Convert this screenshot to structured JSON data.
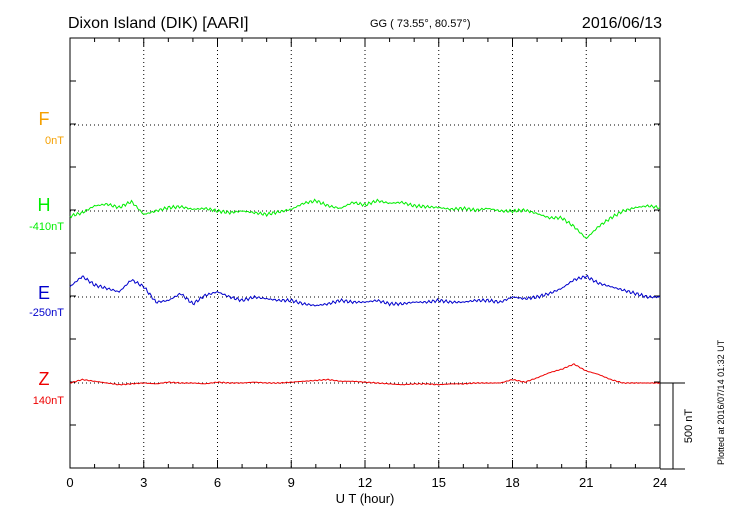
{
  "header": {
    "station": "Dixon Island (DIK)  [AARI]",
    "coords": "GG ( 73.55°,  80.57°)",
    "date": "2016/06/13"
  },
  "side_note": "Plotted at 2016/07/14 01:32 UT",
  "chart_data": {
    "type": "line",
    "xlabel": "U T (hour)",
    "xlim": [
      0,
      24
    ],
    "xticks": [
      "0",
      "3",
      "6",
      "9",
      "12",
      "15",
      "18",
      "21",
      "24"
    ],
    "scale_bar": {
      "label": "500 nT",
      "value_nT": 500
    },
    "colors": {
      "F": "#f5a000",
      "H": "#00ee00",
      "E": "#0000cc",
      "Z": "#ee0000"
    },
    "series": [
      {
        "name": "F",
        "offset_label": "0nT",
        "baseline_nT": 0,
        "values": []
      },
      {
        "name": "H",
        "offset_label": "-410nT",
        "baseline_nT": -410,
        "x": [
          0,
          0.5,
          1,
          1.5,
          2,
          2.5,
          3,
          3.5,
          4,
          4.5,
          5,
          5.5,
          6,
          6.5,
          7,
          7.5,
          8,
          8.5,
          9,
          9.5,
          10,
          10.5,
          11,
          11.5,
          12,
          12.5,
          13,
          13.5,
          14,
          14.5,
          15,
          15.5,
          16,
          16.5,
          17,
          17.5,
          18,
          18.5,
          19,
          19.5,
          20,
          20.5,
          21,
          21.5,
          22,
          22.5,
          23,
          23.5,
          24
        ],
        "values": [
          -30,
          -10,
          30,
          40,
          20,
          55,
          -20,
          0,
          20,
          25,
          10,
          15,
          0,
          -10,
          0,
          -10,
          -20,
          -5,
          10,
          45,
          60,
          30,
          15,
          50,
          35,
          60,
          45,
          50,
          30,
          25,
          20,
          10,
          15,
          5,
          15,
          0,
          0,
          5,
          -15,
          -40,
          -40,
          -90,
          -160,
          -90,
          -40,
          0,
          20,
          30,
          20
        ]
      },
      {
        "name": "E",
        "offset_label": "-250nT",
        "baseline_nT": -250,
        "x": [
          0,
          0.5,
          1,
          1.5,
          2,
          2.5,
          3,
          3.5,
          4,
          4.5,
          5,
          5.5,
          6,
          6.5,
          7,
          7.5,
          8,
          8.5,
          9,
          9.5,
          10,
          10.5,
          11,
          11.5,
          12,
          12.5,
          13,
          13.5,
          14,
          14.5,
          15,
          15.5,
          16,
          16.5,
          17,
          17.5,
          18,
          18.5,
          19,
          19.5,
          20,
          20.5,
          21,
          21.5,
          22,
          22.5,
          23,
          23.5,
          24
        ],
        "values": [
          60,
          120,
          70,
          50,
          30,
          100,
          60,
          -30,
          -20,
          20,
          -40,
          10,
          30,
          0,
          -20,
          0,
          -10,
          -20,
          -20,
          -40,
          -50,
          -40,
          -20,
          -30,
          -30,
          -20,
          -40,
          -40,
          -30,
          -30,
          -20,
          -30,
          -30,
          -20,
          -20,
          -30,
          0,
          -10,
          0,
          20,
          50,
          100,
          120,
          80,
          60,
          40,
          20,
          0,
          0
        ]
      },
      {
        "name": "Z",
        "offset_label": "140nT",
        "baseline_nT": 140,
        "x": [
          0,
          0.5,
          1,
          1.5,
          2,
          2.5,
          3,
          3.5,
          4,
          4.5,
          5,
          5.5,
          6,
          6.5,
          7,
          7.5,
          8,
          8.5,
          9,
          9.5,
          10,
          10.5,
          11,
          11.5,
          12,
          12.5,
          13,
          13.5,
          14,
          14.5,
          15,
          15.5,
          16,
          16.5,
          17,
          17.5,
          18,
          18.5,
          19,
          19.5,
          20,
          20.5,
          21,
          21.5,
          22,
          22.5,
          23,
          23.5,
          24
        ],
        "values": [
          0,
          20,
          10,
          0,
          -10,
          -5,
          0,
          -5,
          5,
          0,
          0,
          -5,
          5,
          0,
          0,
          5,
          0,
          0,
          5,
          10,
          15,
          20,
          10,
          10,
          5,
          0,
          -5,
          -10,
          -5,
          -5,
          -10,
          -5,
          -5,
          0,
          0,
          0,
          20,
          5,
          30,
          60,
          80,
          110,
          70,
          50,
          20,
          0,
          0,
          0,
          0
        ]
      }
    ],
    "grid": "dotted"
  }
}
